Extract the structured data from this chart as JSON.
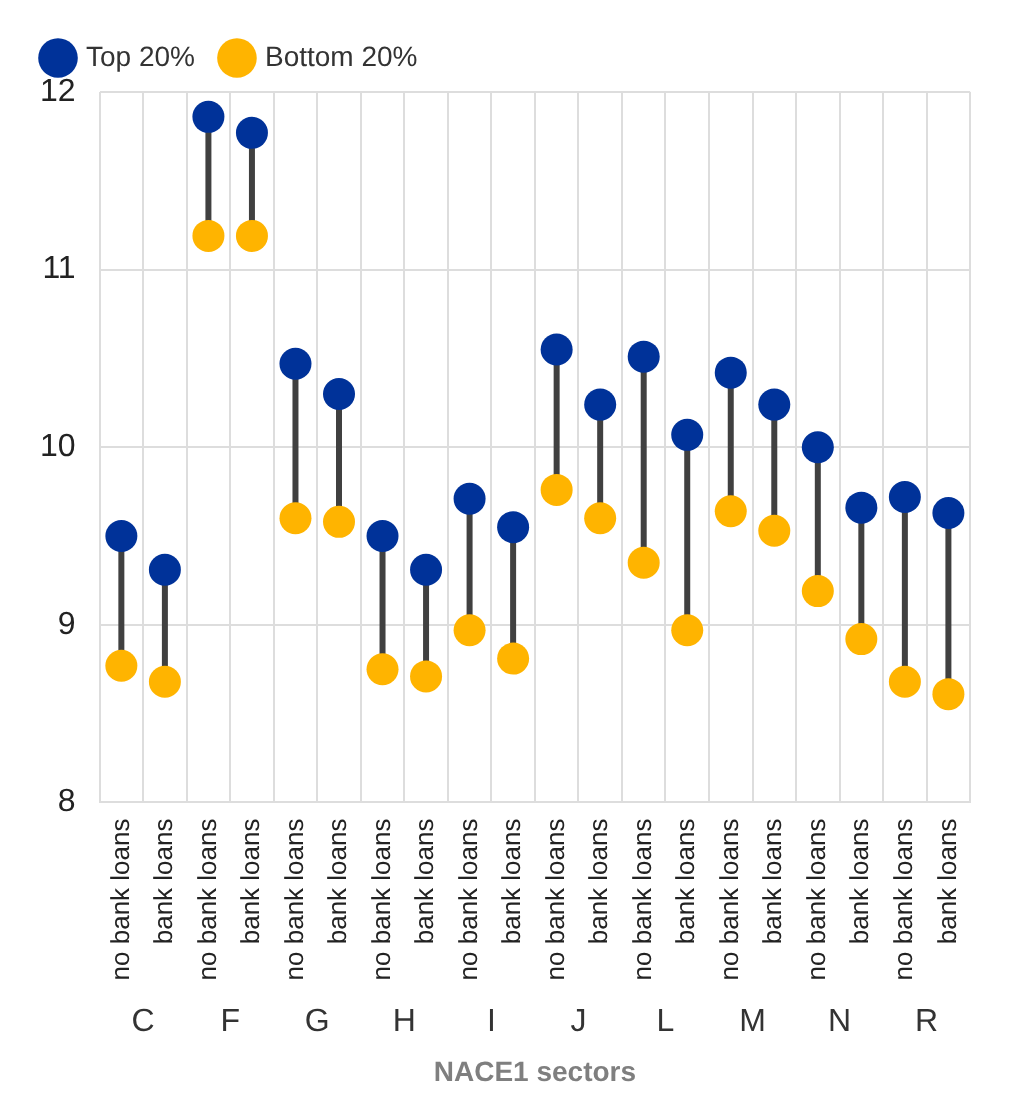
{
  "chart_data": {
    "type": "scatter",
    "xlabel": "NACE1 sectors",
    "categories": [
      "no bank loans",
      "bank loans",
      "no bank loans",
      "bank loans",
      "no bank loans",
      "bank loans",
      "no bank loans",
      "bank loans",
      "no bank loans",
      "bank loans",
      "no bank loans",
      "bank loans",
      "no bank loans",
      "bank loans",
      "no bank loans",
      "bank loans",
      "no bank loans",
      "bank loans",
      "no bank loans",
      "bank loans"
    ],
    "annotations": [
      "C",
      "F",
      "G",
      "H",
      "I",
      "J",
      "L",
      "M",
      "N",
      "R"
    ],
    "series": [
      {
        "name": "Top 20%",
        "color": "#003299",
        "values": [
          9.5,
          9.31,
          11.86,
          11.77,
          10.47,
          10.3,
          9.5,
          9.31,
          9.71,
          9.55,
          10.55,
          10.24,
          10.51,
          10.07,
          10.42,
          10.24,
          10.0,
          9.66,
          9.72,
          9.63
        ]
      },
      {
        "name": "Bottom 20%",
        "color": "#ffb400",
        "values": [
          8.77,
          8.68,
          11.19,
          11.19,
          9.6,
          9.58,
          8.75,
          8.71,
          8.97,
          8.81,
          9.76,
          9.6,
          9.35,
          8.97,
          9.64,
          9.53,
          9.19,
          8.92,
          8.68,
          8.61
        ]
      }
    ],
    "ylim": [
      8,
      12
    ],
    "yticks": [
      8,
      9,
      10,
      11,
      12
    ],
    "grid": true,
    "legend": "top left",
    "marker": "circle"
  }
}
